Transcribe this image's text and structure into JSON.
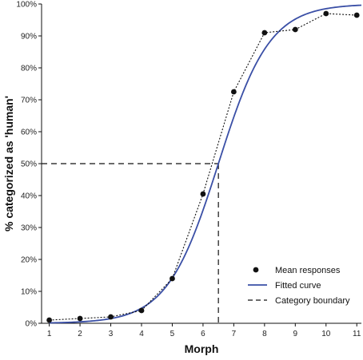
{
  "chart_data": {
    "type": "line",
    "xlabel": "Morph",
    "ylabel": "% categorized as 'human'",
    "xlim": [
      0.75,
      11.15
    ],
    "ylim": [
      0,
      100
    ],
    "x_ticks": [
      1,
      2,
      3,
      4,
      5,
      6,
      7,
      8,
      9,
      10,
      11
    ],
    "y_ticks": [
      0,
      10,
      20,
      30,
      40,
      50,
      60,
      70,
      80,
      90,
      100
    ],
    "y_tick_labels": [
      "0%",
      "10%",
      "20%",
      "30%",
      "40%",
      "50%",
      "60%",
      "70%",
      "80%",
      "90%",
      "100%"
    ],
    "grid": false,
    "legend_position": "bottom-right",
    "series": [
      {
        "name": "Mean responses",
        "style": "dotted-markers",
        "color": "#111111",
        "x": [
          1,
          2,
          3,
          4,
          5,
          6,
          7,
          8,
          9,
          10,
          11
        ],
        "y": [
          1,
          1.5,
          2,
          4,
          14,
          40.5,
          72.5,
          91,
          92,
          97,
          96.5
        ]
      },
      {
        "name": "Fitted curve",
        "style": "solid",
        "color": "#3a4fa6",
        "function": "logistic",
        "midpoint": 6.5,
        "slope": 1.2,
        "y_max": 100
      },
      {
        "name": "Category boundary",
        "style": "dashed",
        "color": "#111111",
        "x": 6.5,
        "y": 50
      }
    ]
  }
}
